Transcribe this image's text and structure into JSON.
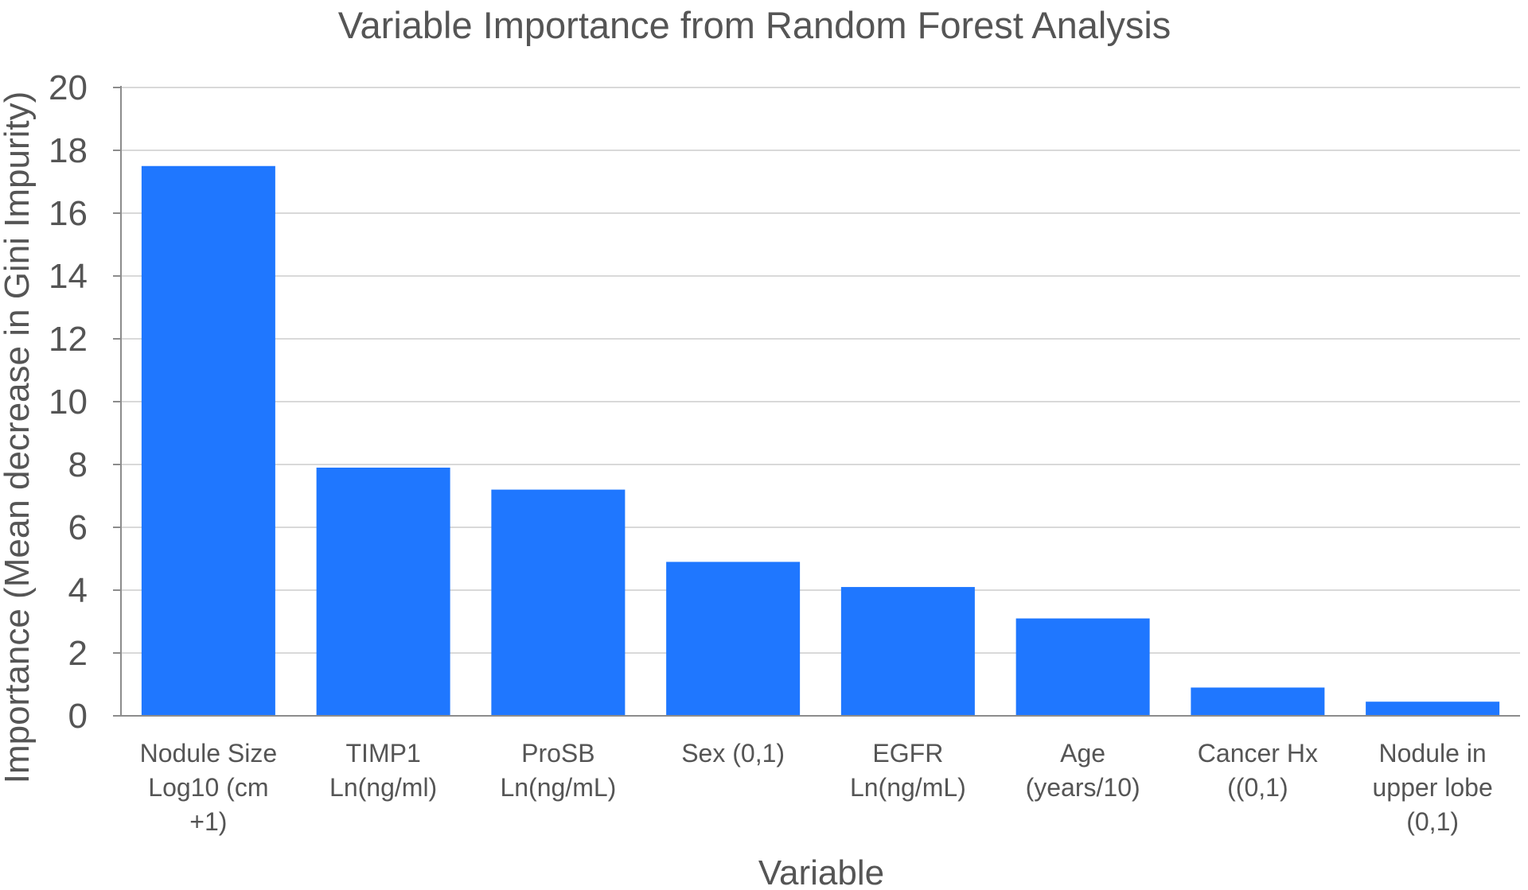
{
  "chart_data": {
    "type": "bar",
    "title": "Variable Importance from Random Forest Analysis",
    "xlabel": "Variable",
    "ylabel": "Importance (Mean decrease in Gini Impurity)",
    "ylim": [
      0,
      20
    ],
    "yticks": [
      0,
      2,
      4,
      6,
      8,
      10,
      12,
      14,
      16,
      18,
      20
    ],
    "grid": true,
    "legend": "none",
    "bar_color": "#1f77ff",
    "categories": [
      [
        "Nodule Size",
        "Log10 (cm",
        "+1)"
      ],
      [
        "TIMP1",
        "Ln(ng/ml)"
      ],
      [
        "ProSB",
        "Ln(ng/mL)"
      ],
      [
        "Sex (0,1)"
      ],
      [
        "EGFR",
        "Ln(ng/mL)"
      ],
      [
        "Age",
        "(years/10)"
      ],
      [
        "Cancer Hx",
        "((0,1)"
      ],
      [
        "Nodule in",
        "upper lobe",
        "(0,1)"
      ]
    ],
    "values": [
      17.5,
      7.9,
      7.2,
      4.9,
      4.1,
      3.1,
      0.9,
      0.45
    ]
  }
}
